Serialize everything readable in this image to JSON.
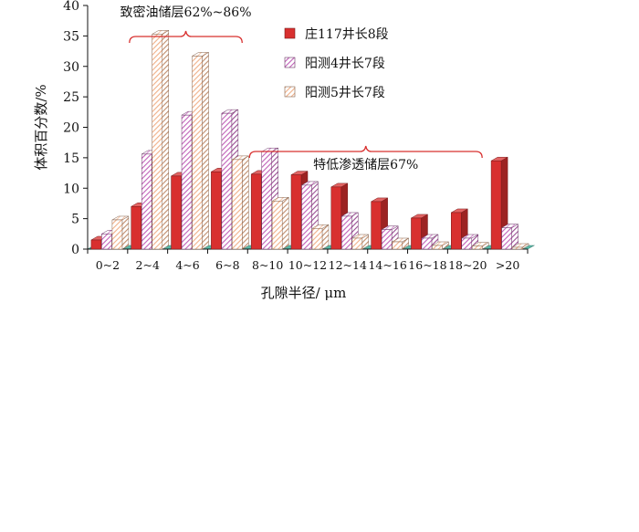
{
  "chart_data": {
    "type": "bar",
    "title": "",
    "xlabel": "孔隙半径/ μm",
    "ylabel": "体积百分数/%",
    "ylim": [
      0,
      40
    ],
    "yticks": [
      0,
      5,
      10,
      15,
      20,
      25,
      30,
      35,
      40
    ],
    "categories": [
      "0~2",
      "2~4",
      "4~6",
      "6~8",
      "8~10",
      "10~12",
      "12~14",
      "14~16",
      "16~18",
      "18~20",
      ">20"
    ],
    "series": [
      {
        "name": "庄117井长8段",
        "color": "#d8302f",
        "pattern": "solid",
        "values": [
          1.5,
          7.0,
          12.0,
          12.7,
          12.3,
          12.2,
          10.2,
          7.8,
          5.1,
          6.0,
          14.5
        ]
      },
      {
        "name": "阳测4井长7段",
        "color": "#c060b8",
        "pattern": "hatch",
        "values": [
          2.5,
          15.6,
          22.0,
          22.3,
          16.0,
          10.5,
          5.4,
          3.2,
          1.8,
          1.8,
          3.5
        ]
      },
      {
        "name": "阳测5井长7段",
        "color": "#f0b088",
        "pattern": "hatch",
        "values": [
          4.8,
          35.3,
          31.7,
          14.7,
          7.9,
          3.4,
          1.8,
          1.2,
          0.6,
          0.5,
          0.3
        ]
      }
    ],
    "legend_position": "top-right",
    "annotations": [
      {
        "text": "致密油储层62%~86%",
        "span": [
          "2~4",
          "6~8"
        ]
      },
      {
        "text": "特低渗透储层67%",
        "span": [
          "8~10",
          "18~20"
        ]
      }
    ],
    "floor_color": "#5ab8a8"
  }
}
